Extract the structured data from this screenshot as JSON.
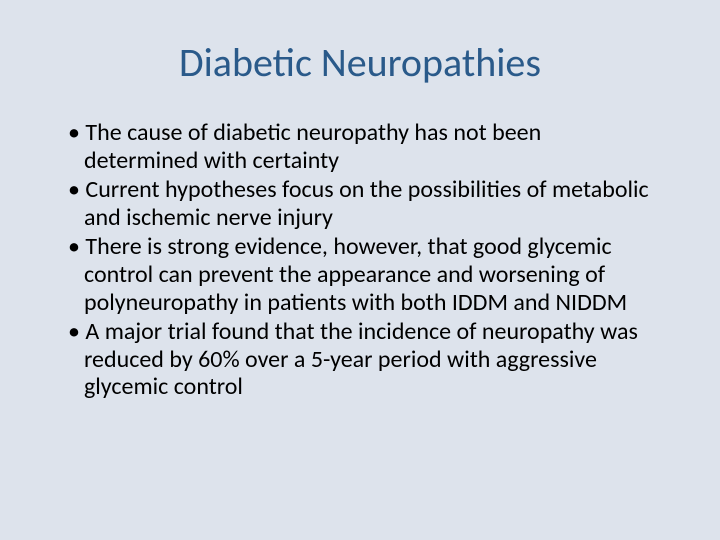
{
  "slide": {
    "background_color": "#dde3ec",
    "title": {
      "text": "Diabetic Neuropathies",
      "color": "#2a5a8a",
      "fontsize": 40,
      "font_weight": 400,
      "align": "center"
    },
    "bullet_style": {
      "marker": "•",
      "color": "#000000",
      "fontsize": 24,
      "line_height": 1.15
    },
    "bullets": [
      "The cause of diabetic neuropathy has not been determined with certainty",
      "Current hypotheses focus on the possibilities of metabolic and ischemic nerve injury",
      "There is strong evidence, however, that good glycemic control can prevent the appearance and worsening of polyneuropathy in patients with both IDDM and NIDDM",
      "A major trial found that the incidence of neuropathy was reduced by 60% over a 5-year period with aggressive glycemic control"
    ]
  }
}
